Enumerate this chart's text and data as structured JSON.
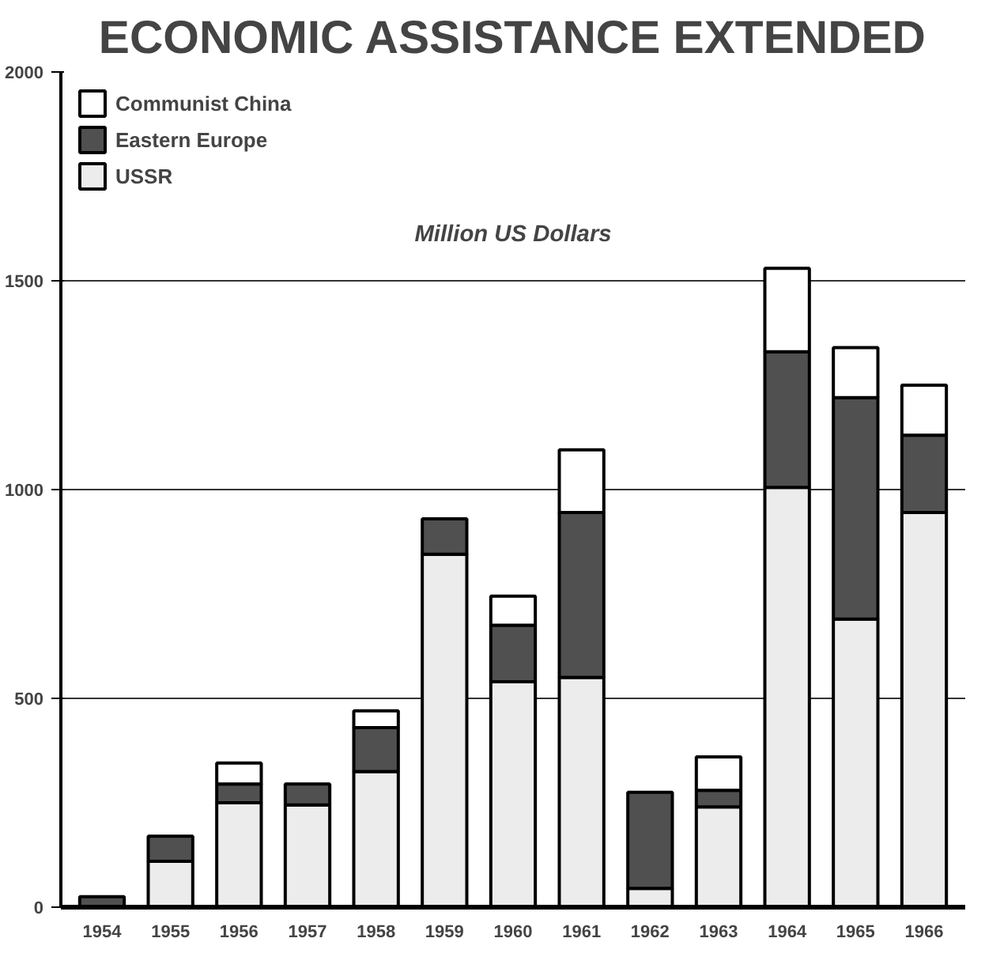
{
  "chart_data": {
    "type": "bar",
    "title": "ECONOMIC ASSISTANCE EXTENDED",
    "subtitle": "Million US Dollars",
    "stacked": true,
    "categories": [
      "1954",
      "1955",
      "1956",
      "1957",
      "1958",
      "1959",
      "1960",
      "1961",
      "1962",
      "1963",
      "1964",
      "1965",
      "1966"
    ],
    "series": [
      {
        "name": "USSR",
        "color": "#ececec",
        "values": [
          null,
          110,
          250,
          245,
          325,
          845,
          540,
          550,
          45,
          240,
          1005,
          690,
          945
        ]
      },
      {
        "name": "Eastern Europe",
        "color": "#505050",
        "values": [
          25,
          60,
          45,
          50,
          105,
          85,
          135,
          395,
          230,
          40,
          325,
          530,
          185
        ]
      },
      {
        "name": "Communist China",
        "color": "#ffffff",
        "values": [
          null,
          null,
          50,
          null,
          40,
          null,
          70,
          150,
          null,
          80,
          200,
          120,
          120
        ]
      }
    ],
    "ylim": [
      0,
      2000
    ],
    "yticks": [
      0,
      500,
      1000,
      1500,
      2000
    ],
    "grid": "y",
    "legend": "top left"
  }
}
